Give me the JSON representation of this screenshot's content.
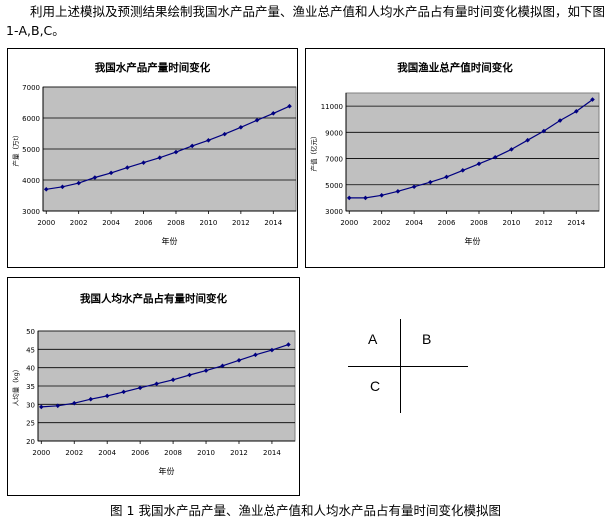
{
  "intro_text": "利用上述模拟及预测结果绘制我国水产品产量、渔业总产值和人均水产品占有量时间变化模拟图，如下图 1-A,B,C。",
  "caption": "图 1  我国水产品产量、渔业总产值和人均水产品占有量时间变化模拟图",
  "quadrant": {
    "a": "A",
    "b": "B",
    "c": "C"
  },
  "colors": {
    "series": "#000080",
    "plot_bg": "#c0c0c0",
    "grid": "#000000"
  },
  "chart_data": [
    {
      "type": "line",
      "title": "我国水产品产量时间变化",
      "xlabel": "年份",
      "ylabel": "产量（万t）",
      "ylim": [
        3000,
        7000
      ],
      "yticks": [
        3000,
        4000,
        5000,
        6000,
        7000
      ],
      "xticks": [
        2000,
        2002,
        2004,
        2006,
        2008,
        2010,
        2012,
        2014
      ],
      "grid": true,
      "series": [
        {
          "x": [
            2000,
            2001,
            2002,
            2003,
            2004,
            2005,
            2006,
            2007,
            2008,
            2009,
            2010,
            2011,
            2012,
            2013,
            2014,
            2015
          ],
          "values": [
            3700,
            3780,
            3900,
            4080,
            4230,
            4400,
            4560,
            4720,
            4900,
            5100,
            5280,
            5480,
            5700,
            5930,
            6150,
            6380
          ]
        }
      ]
    },
    {
      "type": "line",
      "title": "我国渔业总产值时间变化",
      "xlabel": "年份",
      "ylabel": "产值（亿元）",
      "ylim": [
        3000,
        12000
      ],
      "yticks": [
        3000,
        5000,
        7000,
        9000,
        11000
      ],
      "ytick_labels": [
        "3000",
        "5000",
        "7000",
        "9000",
        "11000"
      ],
      "xticks": [
        2000,
        2002,
        2004,
        2006,
        2008,
        2010,
        2012,
        2014
      ],
      "grid": true,
      "series": [
        {
          "x": [
            2000,
            2001,
            2002,
            2003,
            2004,
            2005,
            2006,
            2007,
            2008,
            2009,
            2010,
            2011,
            2012,
            2013,
            2014,
            2015
          ],
          "values": [
            4000,
            4000,
            4200,
            4500,
            4850,
            5200,
            5600,
            6100,
            6600,
            7100,
            7700,
            8400,
            9100,
            9900,
            10600,
            11500
          ]
        }
      ]
    },
    {
      "type": "line",
      "title": "我国人均水产品占有量时间变化",
      "xlabel": "年份",
      "ylabel": "人均量（kg）",
      "ylim": [
        20,
        50
      ],
      "yticks": [
        20,
        25,
        30,
        35,
        40,
        45,
        50
      ],
      "xticks": [
        2000,
        2002,
        2004,
        2006,
        2008,
        2010,
        2012,
        2014
      ],
      "grid": true,
      "series": [
        {
          "x": [
            2000,
            2001,
            2002,
            2003,
            2004,
            2005,
            2006,
            2007,
            2008,
            2009,
            2010,
            2011,
            2012,
            2013,
            2014,
            2015
          ],
          "values": [
            29.3,
            29.6,
            30.3,
            31.4,
            32.3,
            33.4,
            34.5,
            35.6,
            36.7,
            38.0,
            39.2,
            40.5,
            42.0,
            43.5,
            44.8,
            46.3
          ]
        }
      ]
    }
  ]
}
